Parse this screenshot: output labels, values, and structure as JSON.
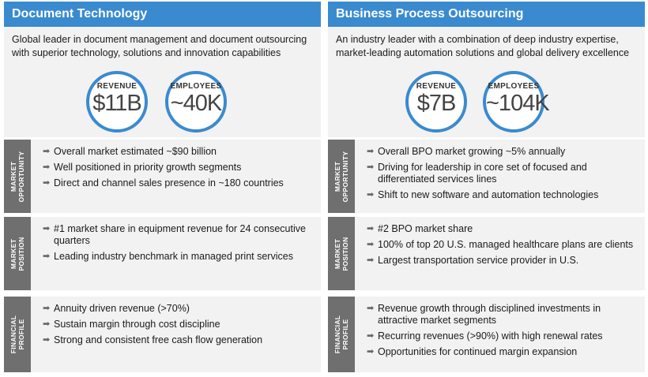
{
  "panels": [
    {
      "title": "Document Technology",
      "description": "Global leader in document management and document outsourcing with superior technology, solutions and innovation capabilities",
      "stats": [
        {
          "label": "REVENUE",
          "value": "$11B"
        },
        {
          "label": "EMPLOYEES",
          "value": "~40K"
        }
      ],
      "sections": [
        {
          "label_line1": "MARKET",
          "label_line2": "OPPORTUNITY",
          "items": [
            "Overall market estimated ~$90 billion",
            "Well positioned in priority growth segments",
            "Direct and channel sales presence in ~180 countries"
          ]
        },
        {
          "label_line1": "MARKET",
          "label_line2": "POSITION",
          "items": [
            "#1 market share in equipment revenue for 24 consecutive quarters",
            "Leading industry benchmark in managed print services"
          ]
        },
        {
          "label_line1": "FINANCIAL",
          "label_line2": "PROFILE",
          "items": [
            "Annuity driven revenue (>70%)",
            "Sustain margin through cost discipline",
            "Strong and consistent free cash flow generation"
          ]
        }
      ]
    },
    {
      "title": "Business Process Outsourcing",
      "description": "An industry leader with a combination of deep industry expertise, market-leading automation solutions and global delivery excellence",
      "stats": [
        {
          "label": "REVENUE",
          "value": "$7B"
        },
        {
          "label": "EMPLOYEES",
          "value": "~104K"
        }
      ],
      "sections": [
        {
          "label_line1": "MARKET",
          "label_line2": "OPPORTUNITY",
          "items": [
            "Overall BPO market growing ~5% annually",
            "Driving for leadership in core set of focused and differentiated services lines",
            "Shift to new software and automation technologies"
          ]
        },
        {
          "label_line1": "MARKET",
          "label_line2": "POSITION",
          "items": [
            "#2 BPO market share",
            "100% of top 20 U.S. managed healthcare plans are clients",
            "Largest transportation service provider in U.S."
          ]
        },
        {
          "label_line1": "FINANCIAL",
          "label_line2": "PROFILE",
          "items": [
            "Revenue growth through disciplined investments in attractive market segments",
            "Recurring revenues (>90%) with high renewal rates",
            "Opportunities for continued margin expansion"
          ]
        }
      ]
    }
  ]
}
